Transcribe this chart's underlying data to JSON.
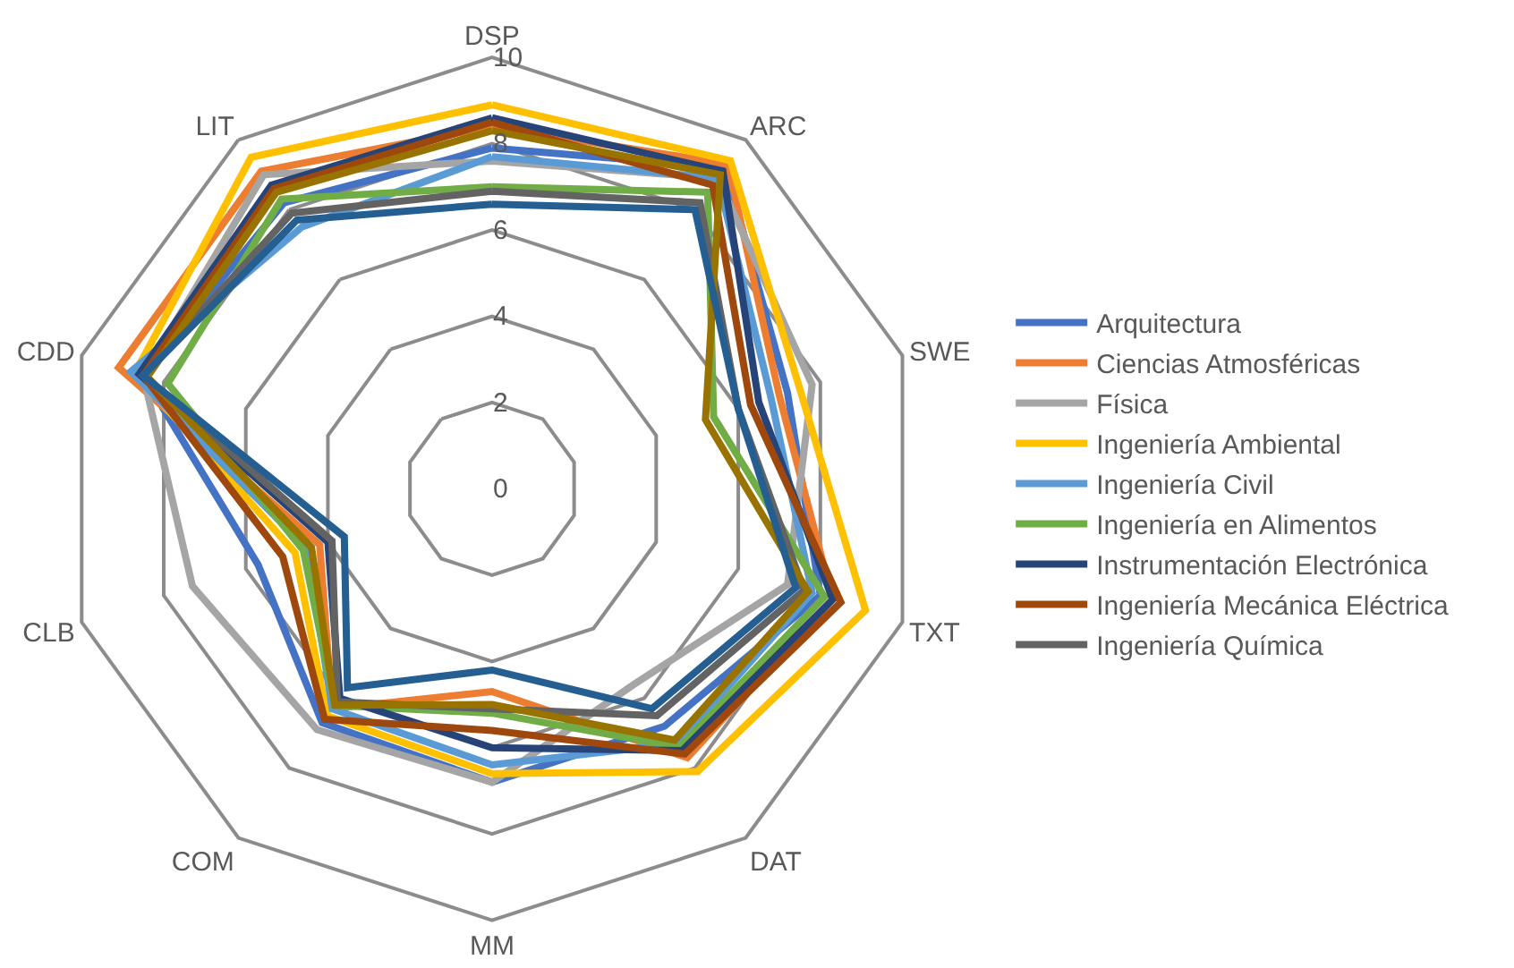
{
  "chart_data": {
    "type": "radar",
    "categories": [
      "DSP",
      "ARC",
      "SWE",
      "TXT",
      "DAT",
      "MM",
      "COM",
      "CLB",
      "CDD",
      "LIT"
    ],
    "ylim": [
      0,
      10
    ],
    "yticks": [
      0,
      2,
      4,
      6,
      8,
      10
    ],
    "grid": true,
    "legend": "right",
    "marker": "none",
    "line_style": "solid",
    "series": [
      {
        "name": "Arquitectura",
        "color": "#4472c4",
        "values": [
          7.9,
          9.2,
          7.2,
          8.0,
          6.8,
          6.8,
          6.7,
          5.7,
          8.5,
          8.2
        ]
      },
      {
        "name": "Ciencias Atmosféricas",
        "color": "#ed7d31",
        "values": [
          8.4,
          9.3,
          7.0,
          8.3,
          7.7,
          4.7,
          6.3,
          4.2,
          9.1,
          9.1
        ]
      },
      {
        "name": "Física",
        "color": "#a5a5a5",
        "values": [
          7.6,
          8.9,
          7.8,
          7.2,
          5.6,
          6.8,
          6.9,
          7.3,
          8.5,
          9.0
        ]
      },
      {
        "name": "Ingeniería Ambiental",
        "color": "#ffc000",
        "values": [
          8.9,
          9.4,
          7.5,
          9.1,
          8.1,
          6.6,
          6.5,
          4.8,
          8.7,
          9.5
        ]
      },
      {
        "name": "Ingeniería Civil",
        "color": "#5b9bd5",
        "values": [
          7.7,
          8.9,
          6.8,
          7.8,
          7.3,
          6.4,
          6.3,
          4.5,
          8.8,
          7.5
        ]
      },
      {
        "name": "Ingeniería en Alimentos",
        "color": "#70ad47",
        "values": [
          7.0,
          8.5,
          5.4,
          8.1,
          7.4,
          5.2,
          6.2,
          4.6,
          7.9,
          8.3
        ]
      },
      {
        "name": "Instrumentación Electrónica",
        "color": "#264478",
        "values": [
          8.6,
          9.1,
          6.5,
          8.3,
          7.5,
          6.0,
          6.0,
          4.0,
          8.6,
          8.7
        ]
      },
      {
        "name": "Ingeniería Mecánica Eléctrica",
        "color": "#9e480e",
        "values": [
          8.5,
          8.7,
          6.3,
          8.5,
          7.6,
          5.6,
          6.6,
          5.1,
          8.5,
          8.6
        ]
      },
      {
        "name": "Ingeniería Química",
        "color": "#636363",
        "values": [
          6.9,
          8.2,
          6.0,
          7.6,
          6.5,
          5.1,
          6.1,
          3.9,
          8.5,
          7.9
        ]
      },
      {
        "color": "#997300",
        "values": [
          8.3,
          9.0,
          5.2,
          7.7,
          7.2,
          5.0,
          6.2,
          4.4,
          8.4,
          8.5
        ]
      },
      {
        "color": "#255e91",
        "values": [
          6.6,
          8.0,
          6.0,
          7.4,
          6.3,
          4.2,
          5.7,
          3.6,
          8.5,
          7.7
        ]
      }
    ]
  }
}
